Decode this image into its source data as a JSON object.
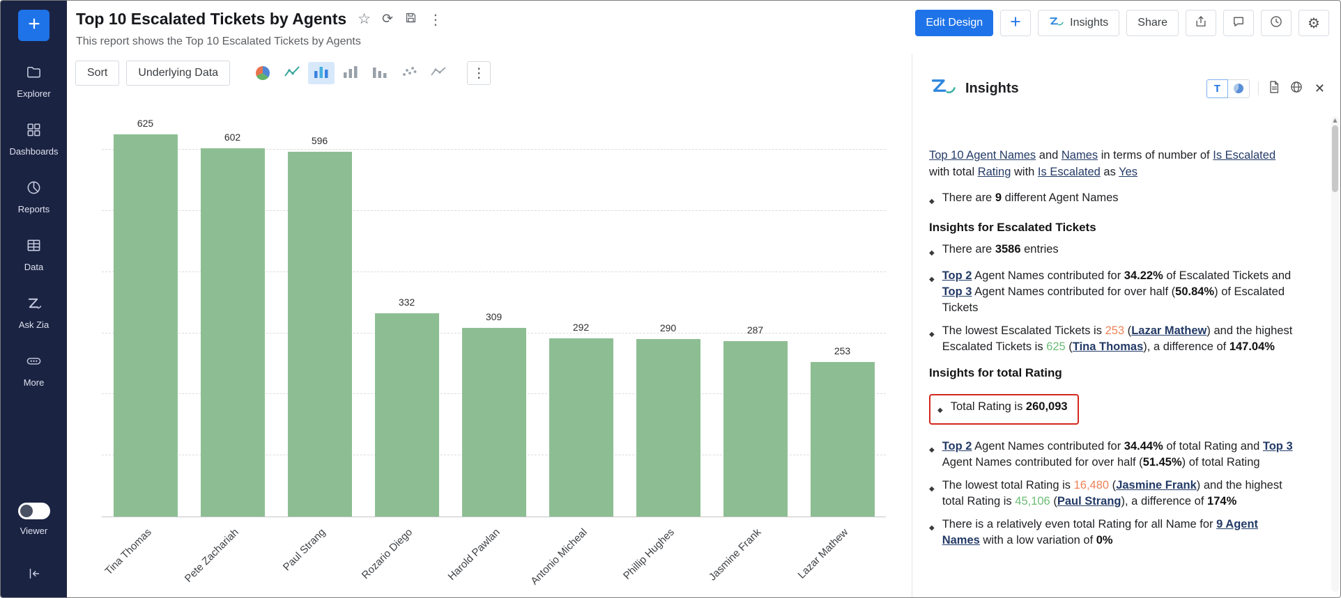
{
  "sidebar": {
    "items": [
      {
        "label": "Explorer"
      },
      {
        "label": "Dashboards"
      },
      {
        "label": "Reports"
      },
      {
        "label": "Data"
      },
      {
        "label": "Ask Zia"
      },
      {
        "label": "More"
      }
    ],
    "viewer_label": "Viewer"
  },
  "header": {
    "title": "Top 10 Escalated Tickets by Agents",
    "subtitle": "This report shows the Top 10 Escalated Tickets by Agents",
    "edit_design_label": "Edit Design",
    "insights_label": "Insights",
    "share_label": "Share"
  },
  "toolbar": {
    "sort_label": "Sort",
    "underlying_data_label": "Underlying Data"
  },
  "chart_data": {
    "type": "bar",
    "title": "Top 10 Escalated Tickets by Agents",
    "categories": [
      "Tina Thomas",
      "Pete Zachariah",
      "Paul Strang",
      "Rozario Diego",
      "Harold Pawlan",
      "Antonio Micheal",
      "Phillip Hughes",
      "Jasmine Frank",
      "Lazar Mathew"
    ],
    "values": [
      625,
      602,
      596,
      332,
      309,
      292,
      290,
      287,
      253
    ],
    "xlabel": "",
    "ylabel": "",
    "ylim": [
      0,
      650
    ],
    "grid": "dashed-horizontal",
    "value_labels": true,
    "bar_color": "#8dbe93"
  },
  "insights_panel": {
    "title": "Insights",
    "text_view_label": "T",
    "blocks": [
      {
        "type": "para",
        "segments": [
          {
            "t": "Top 10 Agent Names",
            "s": "link"
          },
          {
            "t": " and ",
            "s": ""
          },
          {
            "t": "Names",
            "s": "link"
          },
          {
            "t": " in terms of number of ",
            "s": ""
          },
          {
            "t": "Is Escalated",
            "s": "link"
          },
          {
            "t": " with total ",
            "s": ""
          },
          {
            "t": "Rating",
            "s": "link"
          },
          {
            "t": " with ",
            "s": ""
          },
          {
            "t": "Is Escalated",
            "s": "link"
          },
          {
            "t": " as ",
            "s": ""
          },
          {
            "t": "Yes",
            "s": "link"
          }
        ]
      },
      {
        "type": "bullet",
        "segments": [
          {
            "t": "There are ",
            "s": ""
          },
          {
            "t": "9",
            "s": "b"
          },
          {
            "t": " different Agent Names",
            "s": ""
          }
        ]
      },
      {
        "type": "heading",
        "text": "Insights for Escalated Tickets"
      },
      {
        "type": "bullet",
        "segments": [
          {
            "t": "There are ",
            "s": ""
          },
          {
            "t": "3586",
            "s": "b"
          },
          {
            "t": " entries",
            "s": ""
          }
        ]
      },
      {
        "type": "bullet",
        "segments": [
          {
            "t": "Top 2",
            "s": "b link"
          },
          {
            "t": " Agent Names contributed for ",
            "s": ""
          },
          {
            "t": "34.22%",
            "s": "b"
          },
          {
            "t": " of Escalated Tickets and ",
            "s": ""
          },
          {
            "t": "Top 3",
            "s": "b link"
          },
          {
            "t": " Agent Names contributed for over half (",
            "s": ""
          },
          {
            "t": "50.84%",
            "s": "b"
          },
          {
            "t": ") of Escalated Tickets",
            "s": ""
          }
        ]
      },
      {
        "type": "bullet",
        "segments": [
          {
            "t": "The lowest Escalated Tickets is ",
            "s": ""
          },
          {
            "t": "253",
            "s": "orange"
          },
          {
            "t": " (",
            "s": ""
          },
          {
            "t": "Lazar Mathew",
            "s": "b link"
          },
          {
            "t": ") and the highest Escalated Tickets is ",
            "s": ""
          },
          {
            "t": "625",
            "s": "green"
          },
          {
            "t": " (",
            "s": ""
          },
          {
            "t": "Tina Thomas",
            "s": "b link"
          },
          {
            "t": "), a difference of ",
            "s": ""
          },
          {
            "t": "147.04%",
            "s": "b"
          }
        ]
      },
      {
        "type": "heading",
        "text": "Insights for total Rating"
      },
      {
        "type": "bullet",
        "boxed": true,
        "segments": [
          {
            "t": "Total Rating is ",
            "s": ""
          },
          {
            "t": "260,093",
            "s": "b"
          }
        ]
      },
      {
        "type": "bullet",
        "segments": [
          {
            "t": "Top 2",
            "s": "b link"
          },
          {
            "t": " Agent Names contributed for ",
            "s": ""
          },
          {
            "t": "34.44%",
            "s": "b"
          },
          {
            "t": " of total Rating and ",
            "s": ""
          },
          {
            "t": "Top 3",
            "s": "b link"
          },
          {
            "t": " Agent Names contributed for over half (",
            "s": ""
          },
          {
            "t": "51.45%",
            "s": "b"
          },
          {
            "t": ") of total Rating",
            "s": ""
          }
        ]
      },
      {
        "type": "bullet",
        "segments": [
          {
            "t": "The lowest total Rating is ",
            "s": ""
          },
          {
            "t": "16,480",
            "s": "orange"
          },
          {
            "t": " (",
            "s": ""
          },
          {
            "t": "Jasmine Frank",
            "s": "b link"
          },
          {
            "t": ") and the highest total Rating is ",
            "s": ""
          },
          {
            "t": "45,106",
            "s": "green"
          },
          {
            "t": " (",
            "s": ""
          },
          {
            "t": "Paul Strang",
            "s": "b link"
          },
          {
            "t": "), a difference of ",
            "s": ""
          },
          {
            "t": "174%",
            "s": "b"
          }
        ]
      },
      {
        "type": "bullet",
        "segments": [
          {
            "t": "There is a relatively even total Rating for all Name for ",
            "s": ""
          },
          {
            "t": "9 Agent Names",
            "s": "b link"
          },
          {
            "t": " with a low variation of ",
            "s": ""
          },
          {
            "t": "0%",
            "s": "b"
          }
        ]
      }
    ]
  },
  "icons": {
    "kebab": "⋮",
    "close": "✕",
    "bullet_marker": "◆",
    "gear": "⚙",
    "star": "☆",
    "refresh": "⟳",
    "scroll_up_arrow": "▲"
  },
  "colors": {
    "accent_blue": "#1e73e8",
    "sidebar_bg": "#1b2342",
    "bar_green": "#8dbe93",
    "highlight_red": "#d4271c",
    "positive_green": "#6cbe76",
    "lowest_orange": "#ee8257",
    "link_navy": "#233a66"
  }
}
